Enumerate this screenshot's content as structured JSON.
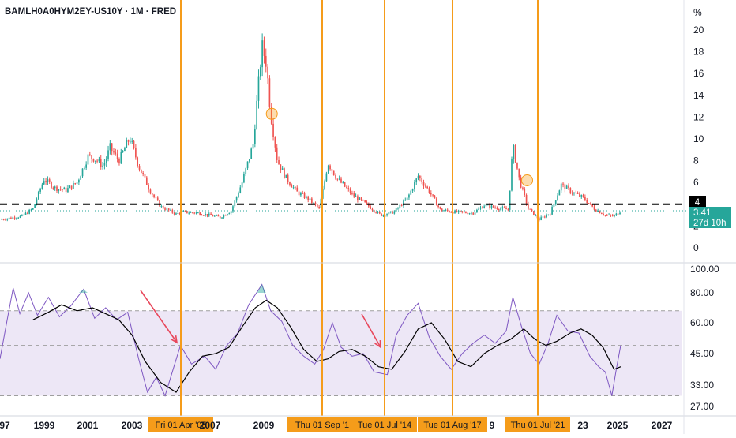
{
  "header": {
    "title": "BAMLH0A0HYM2EY-US10Y · 1M · FRED"
  },
  "price_axis": {
    "unit": "%",
    "ticks": [
      0,
      2,
      4,
      6,
      8,
      10,
      12,
      14,
      16,
      18,
      20
    ]
  },
  "rsi_axis": {
    "ticks": [
      "27.00",
      "33.00",
      "45.00",
      "60.00",
      "80.00",
      "100.00"
    ]
  },
  "x_axis": {
    "labels": [
      "97",
      "1999",
      "2001",
      "2003",
      "2007",
      "2009",
      "9",
      "23",
      "2025",
      "2027"
    ]
  },
  "badges": {
    "level_label": "4",
    "current_value": "3.41",
    "countdown": "27d 10h"
  },
  "date_markers": [
    {
      "label": "Fri 01 Apr '05"
    },
    {
      "label": "Thu 01 Sep '1"
    },
    {
      "label": "Tue 01 Jul '14"
    },
    {
      "label": "Tue 01 Aug '17"
    },
    {
      "label": "Thu 01 Jul '21"
    }
  ],
  "colors": {
    "up": "#26a69a",
    "down": "#ef5350",
    "vline": "#f59c1a",
    "marker_bg": "#f59c1a",
    "rsi_line": "#7e57c2",
    "rsi_ma": "#000000",
    "rsi_band": "#ede7f6",
    "arrow": "#e8475b",
    "current_badge": "#26a69a",
    "level_badge": "#000000"
  },
  "chart_data": [
    {
      "type": "candlestick",
      "frequency": "monthly",
      "x_range": [
        1997.0,
        2028.0
      ],
      "ylim": [
        -1.5,
        21.5
      ],
      "reference_line": 4,
      "current_value": 3.41,
      "series": [
        {
          "name": "",
          "close_path": [
            [
              1997.0,
              2.6
            ],
            [
              1998.0,
              2.9
            ],
            [
              1998.5,
              3.6
            ],
            [
              1999.0,
              6.3
            ],
            [
              1999.5,
              5.5
            ],
            [
              2000.0,
              5.3
            ],
            [
              2000.5,
              6.0
            ],
            [
              2001.0,
              8.4
            ],
            [
              2001.3,
              8.2
            ],
            [
              2001.7,
              7.5
            ],
            [
              2002.0,
              9.2
            ],
            [
              2002.4,
              8.0
            ],
            [
              2002.9,
              10.1
            ],
            [
              2003.3,
              7.5
            ],
            [
              2003.8,
              5.3
            ],
            [
              2004.3,
              3.8
            ],
            [
              2005.0,
              3.1
            ],
            [
              2005.3,
              3.3
            ],
            [
              2006.0,
              3.2
            ],
            [
              2007.0,
              2.8
            ],
            [
              2007.5,
              3.4
            ],
            [
              2008.0,
              6.0
            ],
            [
              2008.5,
              9.5
            ],
            [
              2008.9,
              18.5
            ],
            [
              2009.1,
              17.0
            ],
            [
              2009.3,
              12.3
            ],
            [
              2009.6,
              8.0
            ],
            [
              2010.0,
              6.4
            ],
            [
              2010.5,
              5.1
            ],
            [
              2011.0,
              4.5
            ],
            [
              2011.5,
              3.6
            ],
            [
              2011.7,
              5.6
            ],
            [
              2011.9,
              7.8
            ],
            [
              2012.3,
              6.4
            ],
            [
              2013.0,
              4.9
            ],
            [
              2013.7,
              3.9
            ],
            [
              2014.3,
              3.0
            ],
            [
              2014.9,
              3.3
            ],
            [
              2015.5,
              4.5
            ],
            [
              2016.0,
              6.6
            ],
            [
              2016.5,
              5.2
            ],
            [
              2017.0,
              3.5
            ],
            [
              2017.6,
              3.3
            ],
            [
              2018.5,
              3.2
            ],
            [
              2019.0,
              3.9
            ],
            [
              2019.5,
              3.7
            ],
            [
              2020.1,
              3.5
            ],
            [
              2020.3,
              9.4
            ],
            [
              2020.6,
              6.2
            ],
            [
              2021.0,
              3.6
            ],
            [
              2021.5,
              2.6
            ],
            [
              2022.0,
              3.2
            ],
            [
              2022.5,
              5.8
            ],
            [
              2023.0,
              5.1
            ],
            [
              2023.5,
              4.6
            ],
            [
              2024.0,
              3.6
            ],
            [
              2024.5,
              3.0
            ],
            [
              2024.9,
              2.9
            ],
            [
              2025.2,
              3.41
            ]
          ]
        }
      ]
    },
    {
      "type": "line",
      "indicator": "RSI",
      "ylim": [
        25,
        103
      ],
      "band": [
        30,
        68
      ],
      "midline": 49,
      "series": [
        {
          "name": "",
          "values": [
            [
              1997.0,
              43
            ],
            [
              1997.3,
              60
            ],
            [
              1997.6,
              84
            ],
            [
              1997.9,
              66
            ],
            [
              1998.3,
              80
            ],
            [
              1998.7,
              65
            ],
            [
              1999.2,
              77
            ],
            [
              1999.7,
              64
            ],
            [
              2000.2,
              71
            ],
            [
              2000.8,
              83
            ],
            [
              2001.3,
              63
            ],
            [
              2001.8,
              70
            ],
            [
              2002.3,
              62
            ],
            [
              2002.8,
              67
            ],
            [
              2003.3,
              43
            ],
            [
              2003.7,
              31
            ],
            [
              2004.1,
              36
            ],
            [
              2004.5,
              30
            ],
            [
              2004.9,
              40
            ],
            [
              2005.2,
              49
            ],
            [
              2005.7,
              41
            ],
            [
              2006.3,
              44
            ],
            [
              2006.8,
              39
            ],
            [
              2007.3,
              49
            ],
            [
              2007.8,
              55
            ],
            [
              2008.3,
              72
            ],
            [
              2008.9,
              87
            ],
            [
              2009.3,
              68
            ],
            [
              2009.8,
              61
            ],
            [
              2010.3,
              49
            ],
            [
              2010.8,
              44
            ],
            [
              2011.3,
              41
            ],
            [
              2011.7,
              47
            ],
            [
              2012.1,
              60
            ],
            [
              2012.5,
              48
            ],
            [
              2013.0,
              44
            ],
            [
              2013.5,
              45
            ],
            [
              2014.0,
              38
            ],
            [
              2014.6,
              37
            ],
            [
              2015.0,
              54
            ],
            [
              2015.5,
              65
            ],
            [
              2016.0,
              73
            ],
            [
              2016.5,
              53
            ],
            [
              2017.0,
              44
            ],
            [
              2017.5,
              39
            ],
            [
              2018.0,
              45
            ],
            [
              2018.5,
              50
            ],
            [
              2019.0,
              54
            ],
            [
              2019.5,
              50
            ],
            [
              2020.0,
              56
            ],
            [
              2020.3,
              77
            ],
            [
              2020.7,
              58
            ],
            [
              2021.1,
              45
            ],
            [
              2021.5,
              41
            ],
            [
              2021.9,
              50
            ],
            [
              2022.3,
              65
            ],
            [
              2022.8,
              56
            ],
            [
              2023.3,
              55
            ],
            [
              2023.8,
              44
            ],
            [
              2024.2,
              40
            ],
            [
              2024.5,
              38
            ],
            [
              2024.8,
              30
            ],
            [
              2025.0,
              39
            ],
            [
              2025.2,
              49
            ]
          ]
        },
        {
          "name": "",
          "values": [
            [
              1998.5,
              62
            ],
            [
              1999.2,
              67
            ],
            [
              1999.8,
              72
            ],
            [
              2000.5,
              68
            ],
            [
              2001.2,
              70
            ],
            [
              2001.8,
              66
            ],
            [
              2002.4,
              62
            ],
            [
              2003.0,
              54
            ],
            [
              2003.6,
              42
            ],
            [
              2004.3,
              34
            ],
            [
              2005.0,
              31
            ],
            [
              2005.6,
              38
            ],
            [
              2006.2,
              44
            ],
            [
              2006.8,
              45
            ],
            [
              2007.4,
              48
            ],
            [
              2008.0,
              58
            ],
            [
              2008.6,
              70
            ],
            [
              2009.1,
              75
            ],
            [
              2009.6,
              70
            ],
            [
              2010.2,
              58
            ],
            [
              2010.8,
              47
            ],
            [
              2011.4,
              42
            ],
            [
              2011.9,
              43
            ],
            [
              2012.4,
              46
            ],
            [
              2013.0,
              47
            ],
            [
              2013.6,
              44
            ],
            [
              2014.2,
              40
            ],
            [
              2014.8,
              39
            ],
            [
              2015.4,
              46
            ],
            [
              2016.0,
              57
            ],
            [
              2016.6,
              60
            ],
            [
              2017.2,
              52
            ],
            [
              2017.8,
              42
            ],
            [
              2018.4,
              40
            ],
            [
              2019.0,
              45
            ],
            [
              2019.6,
              49
            ],
            [
              2020.2,
              52
            ],
            [
              2020.8,
              57
            ],
            [
              2021.3,
              52
            ],
            [
              2021.8,
              49
            ],
            [
              2022.3,
              51
            ],
            [
              2022.9,
              55
            ],
            [
              2023.4,
              57
            ],
            [
              2023.9,
              54
            ],
            [
              2024.4,
              48
            ],
            [
              2024.9,
              39
            ],
            [
              2025.2,
              40
            ]
          ]
        }
      ]
    }
  ]
}
